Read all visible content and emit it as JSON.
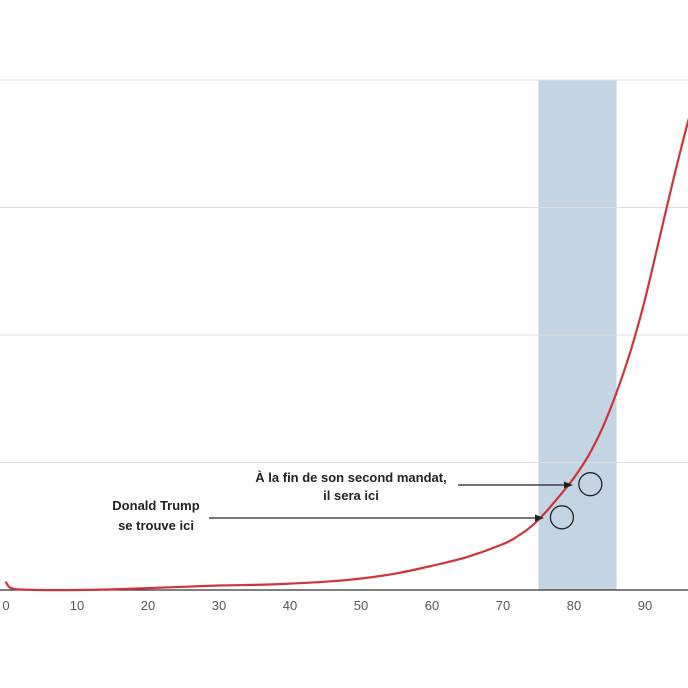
{
  "chart_data": {
    "type": "line",
    "title": "",
    "xlabel": "",
    "ylabel": "",
    "xlim": [
      0,
      97
    ],
    "ylim": [
      0,
      4
    ],
    "grid": true,
    "x_ticks": [
      0,
      10,
      20,
      30,
      40,
      50,
      60,
      70,
      80,
      90
    ],
    "y_gridlines": [
      0,
      1,
      2,
      3,
      4
    ],
    "highlight_band": {
      "x_start": 75,
      "x_end": 86,
      "color": "#c3d4e4"
    },
    "series": [
      {
        "color": "#d13438",
        "x": [
          0,
          1,
          5,
          10,
          15,
          20,
          25,
          30,
          35,
          40,
          45,
          50,
          55,
          60,
          65,
          70,
          72,
          74,
          76,
          78,
          80,
          82,
          84,
          86,
          88,
          90,
          92,
          94,
          96,
          97
        ],
        "y": [
          0.06,
          0.01,
          0.0,
          0.0,
          0.005,
          0.015,
          0.025,
          0.035,
          0.04,
          0.05,
          0.065,
          0.09,
          0.13,
          0.19,
          0.26,
          0.36,
          0.42,
          0.5,
          0.61,
          0.74,
          0.88,
          1.05,
          1.27,
          1.55,
          1.88,
          2.28,
          2.75,
          3.22,
          3.66,
          3.85
        ]
      }
    ],
    "annotations": [
      {
        "line1": "Donald Trump",
        "line2": "se trouve ici",
        "x": 78.3,
        "y": 0.57
      },
      {
        "line1": "À la fin de son second mandat,",
        "line2": "il sera ici",
        "x": 82.3,
        "y": 0.83
      }
    ]
  }
}
